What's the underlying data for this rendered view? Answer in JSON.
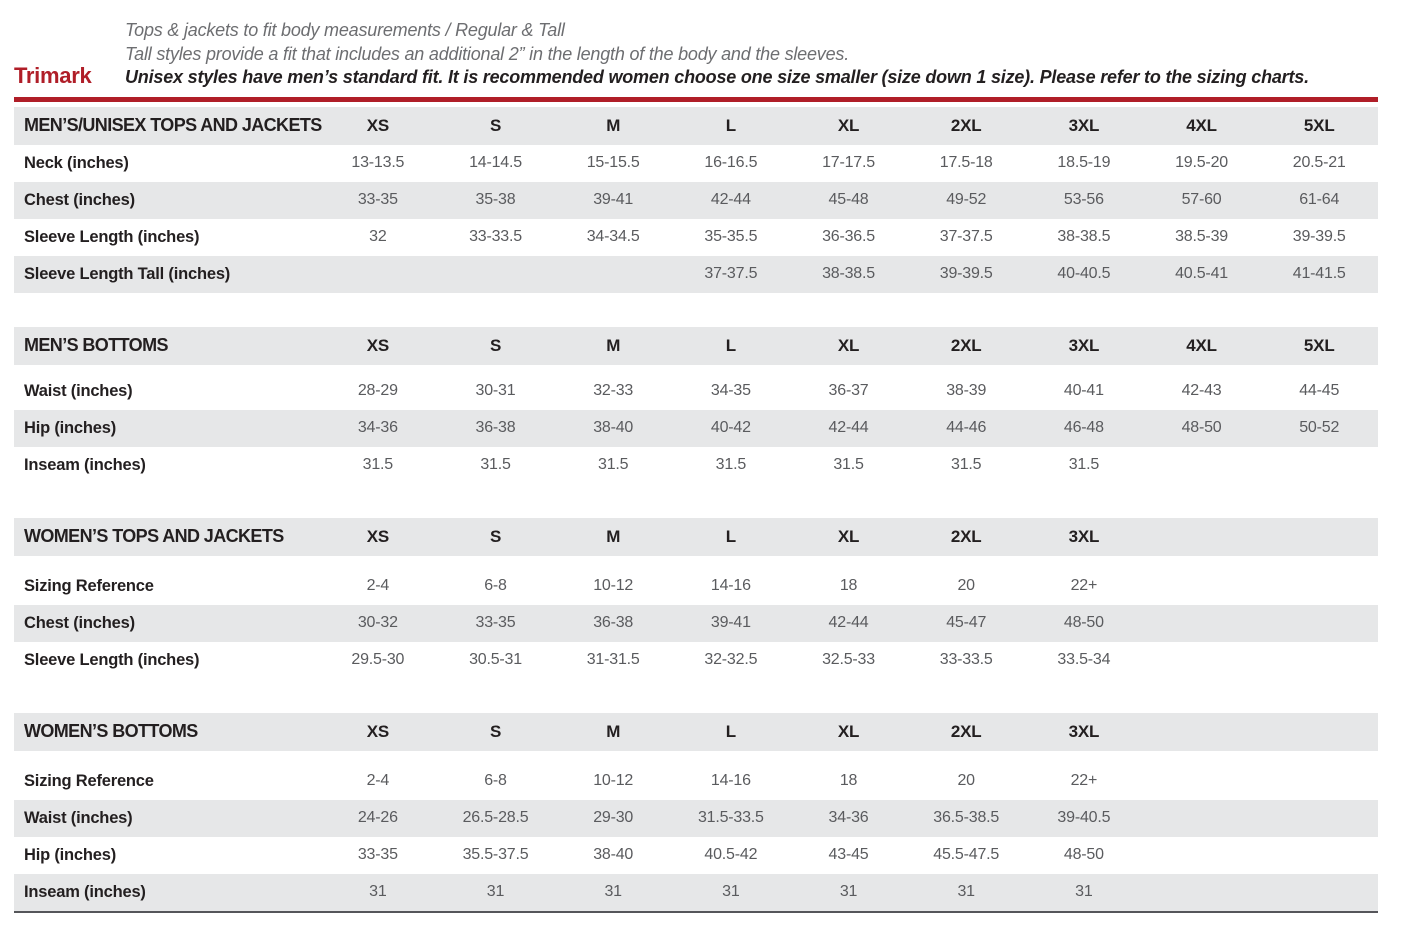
{
  "page": {
    "brand": "Trimark",
    "intro_lines": [
      {
        "text": "Tops & jackets to fit body measurements / Regular & Tall",
        "bold": false
      },
      {
        "text": "Tall styles provide a fit that includes an additional 2” in the length of the body and the sleeves.",
        "bold": false
      },
      {
        "text": "Unisex styles have men’s standard fit. It is recommended women choose one size smaller (size down 1 size).  Please refer to the sizing charts.",
        "bold": true
      }
    ],
    "colors": {
      "accent_red": "#b01e28",
      "stripe_grey": "#e6e7e8",
      "heading_text": "#231f20",
      "value_text": "#5a5b5e",
      "intro_grey": "#6d6e71",
      "bottom_rule": "#55565a"
    }
  },
  "column_slots": 9,
  "tables": [
    {
      "title": "MEN’S/UNISEX TOPS AND JACKETS",
      "sizes": [
        "XS",
        "S",
        "M",
        "L",
        "XL",
        "2XL",
        "3XL",
        "4XL",
        "5XL"
      ],
      "rows": [
        {
          "label": "Neck (inches)",
          "values": [
            "13-13.5",
            "14-14.5",
            "15-15.5",
            "16-16.5",
            "17-17.5",
            "17.5-18",
            "18.5-19",
            "19.5-20",
            "20.5-21"
          ]
        },
        {
          "label": "Chest (inches)",
          "values": [
            "33-35",
            "35-38",
            "39-41",
            "42-44",
            "45-48",
            "49-52",
            "53-56",
            "57-60",
            "61-64"
          ]
        },
        {
          "label": "Sleeve Length (inches)",
          "values": [
            "32",
            "33-33.5",
            "34-34.5",
            "35-35.5",
            "36-36.5",
            "37-37.5",
            "38-38.5",
            "38.5-39",
            "39-39.5"
          ]
        },
        {
          "label": "Sleeve Length Tall (inches)",
          "values": [
            "",
            "",
            "",
            "37-37.5",
            "38-38.5",
            "39-39.5",
            "40-40.5",
            "40.5-41",
            "41-41.5"
          ]
        }
      ]
    },
    {
      "title": "MEN’S BOTTOMS",
      "sizes": [
        "XS",
        "S",
        "M",
        "L",
        "XL",
        "2XL",
        "3XL",
        "4XL",
        "5XL"
      ],
      "rows": [
        {
          "label": "Waist (inches)",
          "values": [
            "28-29",
            "30-31",
            "32-33",
            "34-35",
            "36-37",
            "38-39",
            "40-41",
            "42-43",
            "44-45"
          ]
        },
        {
          "label": "Hip (inches)",
          "values": [
            "34-36",
            "36-38",
            "38-40",
            "40-42",
            "42-44",
            "44-46",
            "46-48",
            "48-50",
            "50-52"
          ]
        },
        {
          "label": "Inseam (inches)",
          "values": [
            "31.5",
            "31.5",
            "31.5",
            "31.5",
            "31.5",
            "31.5",
            "31.5",
            "",
            ""
          ]
        }
      ]
    },
    {
      "title": "WOMEN’S TOPS AND JACKETS",
      "sizes": [
        "XS",
        "S",
        "M",
        "L",
        "XL",
        "2XL",
        "3XL"
      ],
      "rows": [
        {
          "label": "Sizing Reference",
          "values": [
            "2-4",
            "6-8",
            "10-12",
            "14-16",
            "18",
            "20",
            "22+"
          ]
        },
        {
          "label": "Chest (inches)",
          "values": [
            "30-32",
            "33-35",
            "36-38",
            "39-41",
            "42-44",
            "45-47",
            "48-50"
          ]
        },
        {
          "label": "Sleeve Length (inches)",
          "values": [
            "29.5-30",
            "30.5-31",
            "31-31.5",
            "32-32.5",
            "32.5-33",
            "33-33.5",
            "33.5-34"
          ]
        }
      ]
    },
    {
      "title": "WOMEN’S BOTTOMS",
      "sizes": [
        "XS",
        "S",
        "M",
        "L",
        "XL",
        "2XL",
        "3XL"
      ],
      "rows": [
        {
          "label": "Sizing Reference",
          "values": [
            "2-4",
            "6-8",
            "10-12",
            "14-16",
            "18",
            "20",
            "22+"
          ]
        },
        {
          "label": "Waist (inches)",
          "values": [
            "24-26",
            "26.5-28.5",
            "29-30",
            "31.5-33.5",
            "34-36",
            "36.5-38.5",
            "39-40.5"
          ]
        },
        {
          "label": "Hip (inches)",
          "values": [
            "33-35",
            "35.5-37.5",
            "38-40",
            "40.5-42",
            "43-45",
            "45.5-47.5",
            "48-50"
          ]
        },
        {
          "label": "Inseam (inches)",
          "values": [
            "31",
            "31",
            "31",
            "31",
            "31",
            "31",
            "31"
          ]
        }
      ]
    }
  ]
}
